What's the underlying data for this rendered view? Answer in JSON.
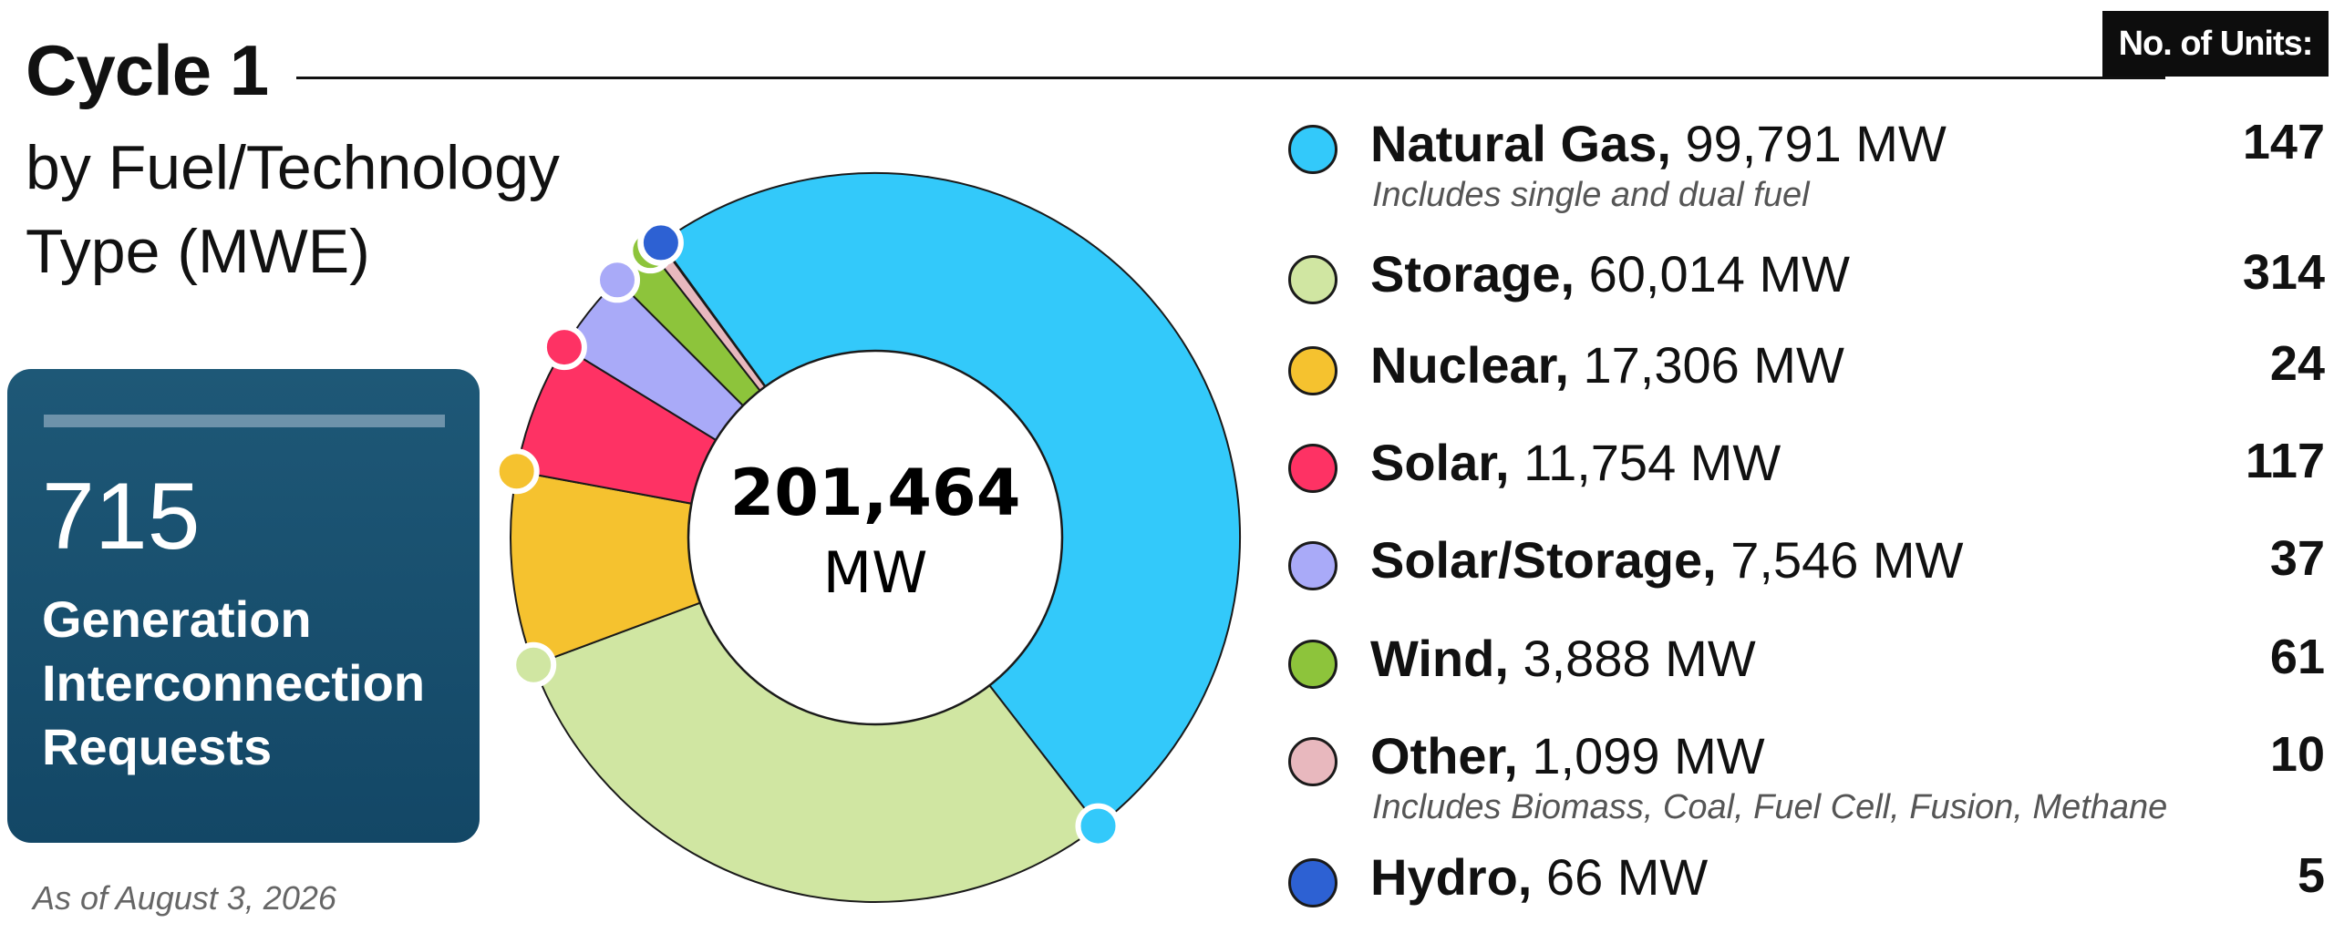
{
  "header": {
    "title": "Cycle 1",
    "subtitle": "by Fuel/Technology Type (MWE)",
    "units_label": "No. of Units:"
  },
  "summary_card": {
    "count": "715",
    "label": "Generation Interconnection Requests"
  },
  "footer": {
    "as_of": "As of August 3, 2026"
  },
  "chart_data": {
    "type": "pie",
    "donut": true,
    "center_value": "201,464",
    "center_unit": "MW",
    "total_mw": 201464,
    "legend_position": "right",
    "series": [
      {
        "name": "Natural Gas",
        "value": 99791,
        "value_label": "99,791 MW",
        "units": "147",
        "note": "Includes single and dual fuel",
        "color": "#33c9fa"
      },
      {
        "name": "Storage",
        "value": 60014,
        "value_label": "60,014 MW",
        "units": "314",
        "note": "",
        "color": "#d0e6a2"
      },
      {
        "name": "Nuclear",
        "value": 17306,
        "value_label": "17,306 MW",
        "units": "24",
        "note": "",
        "color": "#f5c22f"
      },
      {
        "name": "Solar",
        "value": 11754,
        "value_label": "11,754 MW",
        "units": "117",
        "note": "",
        "color": "#fe3264"
      },
      {
        "name": "Solar/Storage",
        "value": 7546,
        "value_label": "7,546 MW",
        "units": "37",
        "note": "",
        "color": "#a9aaf8"
      },
      {
        "name": "Wind",
        "value": 3888,
        "value_label": "3,888 MW",
        "units": "61",
        "note": "",
        "color": "#8dc43b"
      },
      {
        "name": "Other",
        "value": 1099,
        "value_label": "1,099 MW",
        "units": "10",
        "note": "Includes Biomass, Coal, Fuel Cell, Fusion, Methane",
        "color": "#e8b8be"
      },
      {
        "name": "Hydro",
        "value": 66,
        "value_label": "66 MW",
        "units": "5",
        "note": "",
        "color": "#2d61d3"
      }
    ]
  }
}
